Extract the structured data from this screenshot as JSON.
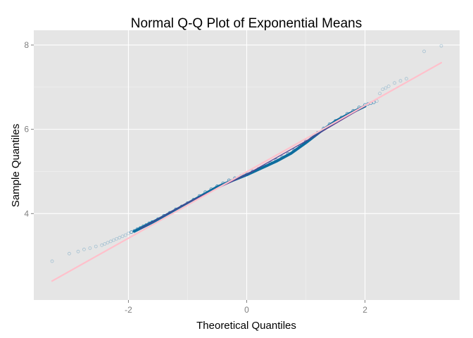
{
  "chart_data": {
    "type": "scatter",
    "title": "Normal Q-Q Plot of Exponential Means",
    "xlabel": "Theoretical Quantiles",
    "ylabel": "Sample Quantiles",
    "xlim": [
      -3.6,
      3.6
    ],
    "ylim": [
      1.95,
      8.35
    ],
    "xticks": [
      {
        "value": -2,
        "label": "-2"
      },
      {
        "value": 0,
        "label": "0"
      },
      {
        "value": 2,
        "label": "2"
      }
    ],
    "yticks": [
      {
        "value": 4,
        "label": "4"
      },
      {
        "value": 6,
        "label": "6"
      },
      {
        "value": 8,
        "label": "8"
      }
    ],
    "grid": true,
    "legend": "none",
    "reference_line": {
      "name": "",
      "x": [
        -3.29,
        3.29
      ],
      "y": [
        2.4,
        7.58
      ],
      "color": "#ffc0cb"
    },
    "series": [
      {
        "kind": "points",
        "color": "#2a7fb0",
        "x": [
          -3.29,
          -3.0,
          -2.85,
          -2.75,
          -2.65,
          -2.55,
          -2.45,
          -2.4,
          -2.35,
          -2.3,
          -2.25,
          -2.2,
          -2.15,
          -2.1,
          -2.05,
          -2.0,
          -1.95,
          -1.9,
          -1.85,
          -1.8,
          -1.75,
          -1.7,
          -1.65,
          -1.6,
          -1.5,
          -1.4,
          -1.3,
          -1.2,
          -1.1,
          -1.0,
          -0.9,
          -0.8,
          -0.7,
          -0.6,
          -0.5,
          -0.4,
          -0.3,
          -0.2,
          -0.1,
          0.0,
          0.1,
          0.2,
          0.3,
          0.4,
          0.5,
          0.6,
          0.7,
          0.8,
          0.9,
          1.0,
          1.1,
          1.2,
          1.3,
          1.4,
          1.5,
          1.6,
          1.7,
          1.8,
          1.9,
          2.0,
          2.05,
          2.1,
          2.15,
          2.2,
          2.25,
          2.3,
          2.35,
          2.4,
          2.5,
          2.6,
          2.7,
          3.0,
          3.29
        ],
        "y": [
          2.87,
          3.05,
          3.1,
          3.15,
          3.18,
          3.22,
          3.25,
          3.28,
          3.31,
          3.34,
          3.37,
          3.4,
          3.43,
          3.46,
          3.49,
          3.53,
          3.56,
          3.59,
          3.63,
          3.66,
          3.7,
          3.73,
          3.77,
          3.8,
          3.87,
          3.95,
          4.02,
          4.1,
          4.17,
          4.25,
          4.33,
          4.42,
          4.51,
          4.58,
          4.65,
          4.72,
          4.79,
          4.84,
          4.89,
          4.93,
          5.0,
          5.06,
          5.13,
          5.2,
          5.27,
          5.34,
          5.42,
          5.5,
          5.6,
          5.71,
          5.82,
          5.92,
          6.02,
          6.12,
          6.2,
          6.28,
          6.37,
          6.44,
          6.52,
          6.58,
          6.6,
          6.62,
          6.64,
          6.67,
          6.85,
          6.95,
          6.98,
          7.02,
          7.1,
          7.15,
          7.2,
          7.85,
          7.98
        ]
      },
      {
        "kind": "line",
        "color": "#0d6d9e",
        "x": [
          -1.9,
          -1.5,
          -1.0,
          -0.5,
          -0.25,
          0.0,
          0.25,
          0.5,
          0.75,
          1.0,
          1.25,
          1.5,
          1.75,
          2.0
        ],
        "y": [
          3.58,
          3.86,
          4.24,
          4.63,
          4.78,
          4.92,
          5.08,
          5.24,
          5.43,
          5.68,
          5.95,
          6.19,
          6.38,
          6.55
        ]
      },
      {
        "kind": "line",
        "color": "#5a3a8e",
        "x": [
          -1.8,
          -1.0,
          0.0,
          1.0,
          2.0
        ],
        "y": [
          3.64,
          4.26,
          4.93,
          5.72,
          6.55
        ]
      }
    ]
  }
}
